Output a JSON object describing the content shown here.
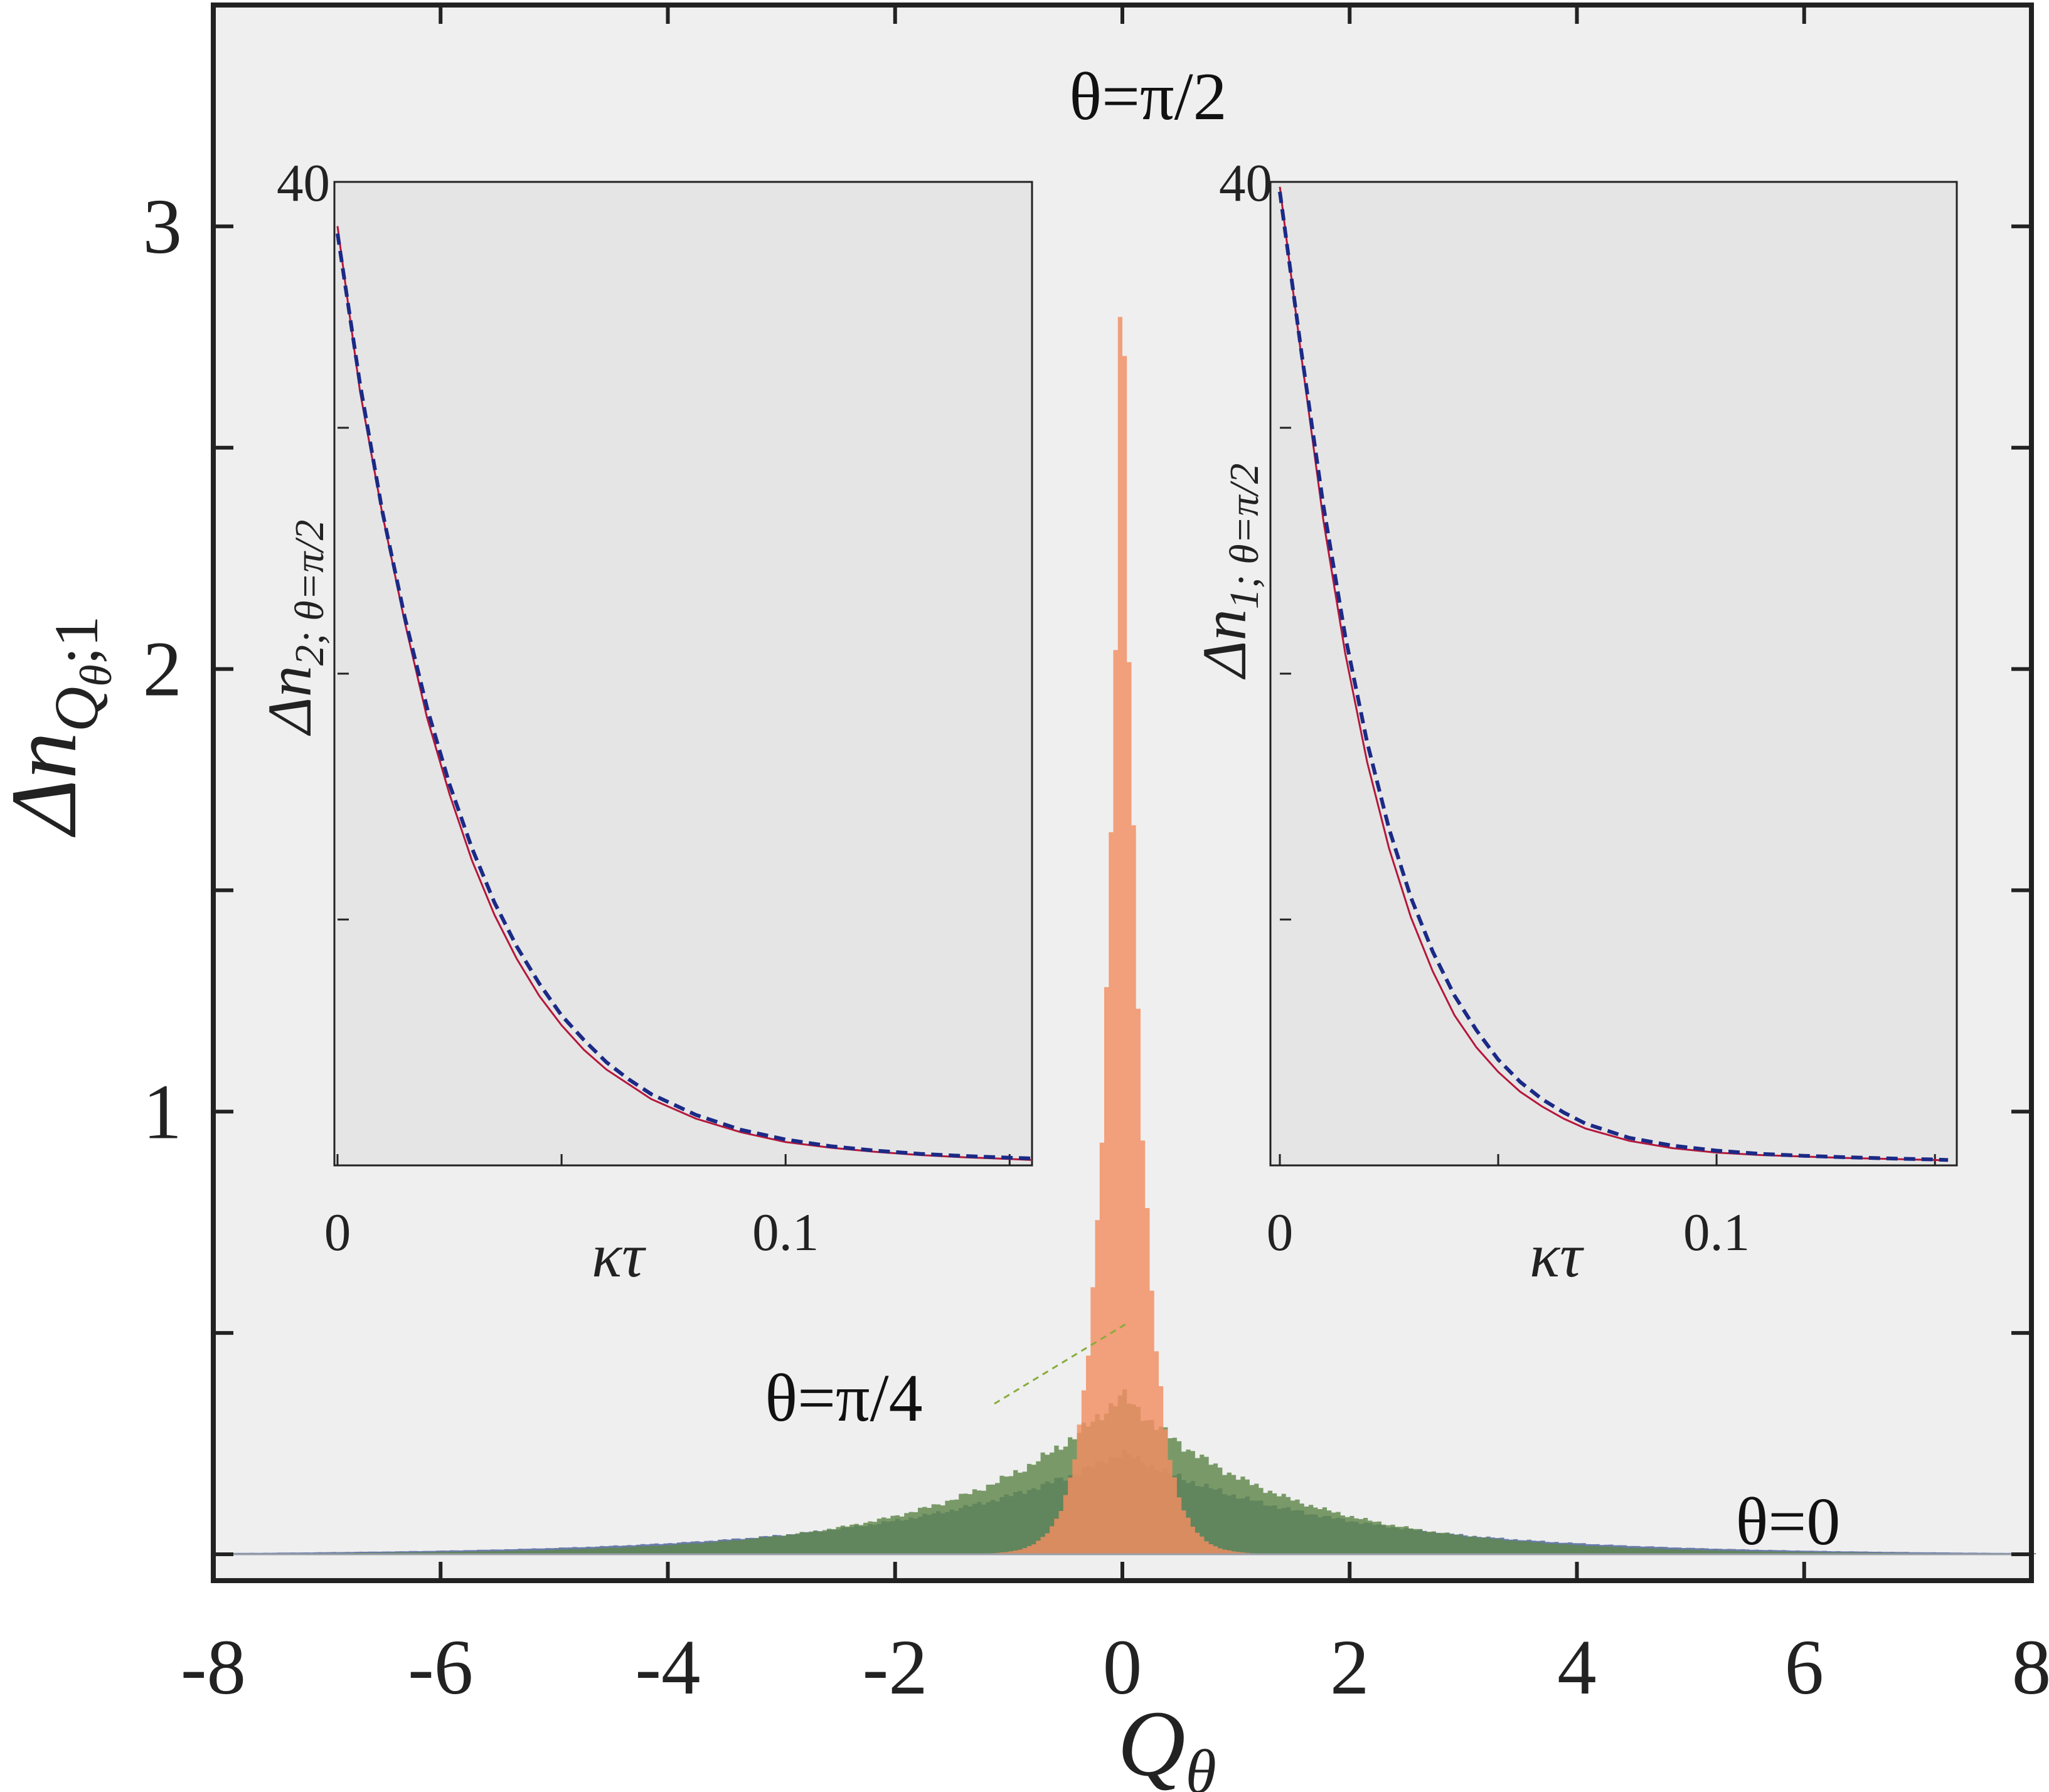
{
  "chart_data": [
    {
      "type": "area",
      "xlabel": "Q",
      "xlabel_sub": "θ",
      "ylabel_main": "Δn",
      "ylabel_sub1": "Q",
      "ylabel_sub2": "θ",
      "ylabel_sub3": ";1",
      "xlim": [
        -8,
        8
      ],
      "ylim": [
        0,
        3.5
      ],
      "xticks": [
        -8,
        -6,
        -4,
        -2,
        0,
        2,
        4,
        6,
        8
      ],
      "xtick_labels": [
        "-8",
        "-6",
        "-4",
        "-2",
        "0",
        "2",
        "4",
        "6",
        "8"
      ],
      "yticks": [
        0,
        0.5,
        1,
        1.5,
        2,
        2.5,
        3
      ],
      "ytick_labels": [
        "",
        "",
        "1",
        "",
        "2",
        "",
        "3"
      ],
      "annotations": [
        {
          "text": "θ=π/2",
          "x": 0.3,
          "y": 3.22
        },
        {
          "text": "θ=π/4",
          "x": -2.6,
          "y": 0.33
        },
        {
          "text": "θ=0",
          "x": 6.9,
          "y": 0.07
        }
      ],
      "series": [
        {
          "color": "#6a7cab",
          "peak": 0.23,
          "width": 1.8,
          "xrange": [
            -8,
            8
          ]
        },
        {
          "color": "#5f874a",
          "peak": 0.36,
          "width": 1.4,
          "xrange": [
            -8,
            8
          ]
        },
        {
          "color": "#f38e62",
          "peak": 3.02,
          "width": 0.16,
          "xrange": [
            -1.6,
            1.9
          ]
        }
      ],
      "leader_line_color": "#8aac3e"
    },
    {
      "type": "line",
      "inset": "left",
      "xlabel": "κτ",
      "ylabel_main": "Δn",
      "ylabel_sub": "2; θ=π/2",
      "xlim": [
        0,
        0.155
      ],
      "ylim": [
        0,
        40
      ],
      "xticks": [
        0,
        0.05,
        0.1,
        0.15
      ],
      "xtick_labels": [
        "0",
        "",
        "0.1",
        ""
      ],
      "yticks": [
        0,
        10,
        20,
        30,
        40
      ],
      "ytick_labels": [
        "",
        "",
        "",
        "",
        "40"
      ],
      "series": [
        {
          "style": "solid",
          "color": "#b5173a",
          "x": [
            0,
            0.005,
            0.01,
            0.015,
            0.02,
            0.025,
            0.03,
            0.035,
            0.04,
            0.045,
            0.05,
            0.055,
            0.06,
            0.065,
            0.07,
            0.08,
            0.09,
            0.1,
            0.11,
            0.12,
            0.13,
            0.14,
            0.15,
            0.155
          ],
          "y": [
            38.2,
            31.5,
            26.5,
            22.1,
            18.2,
            15.1,
            12.4,
            10.2,
            8.4,
            6.9,
            5.7,
            4.7,
            3.9,
            3.3,
            2.7,
            1.9,
            1.35,
            0.95,
            0.72,
            0.55,
            0.42,
            0.33,
            0.26,
            0.22
          ]
        },
        {
          "style": "dashed",
          "color": "#1b2a86",
          "x": [
            0,
            0.005,
            0.01,
            0.015,
            0.02,
            0.025,
            0.03,
            0.035,
            0.04,
            0.045,
            0.05,
            0.055,
            0.06,
            0.065,
            0.07,
            0.08,
            0.09,
            0.1,
            0.11,
            0.12,
            0.13,
            0.14,
            0.15,
            0.155
          ],
          "y": [
            37.9,
            31.8,
            26.6,
            22.3,
            18.6,
            15.5,
            12.9,
            10.7,
            8.9,
            7.4,
            6.1,
            5.1,
            4.2,
            3.5,
            2.9,
            2.05,
            1.45,
            1.05,
            0.78,
            0.6,
            0.47,
            0.38,
            0.31,
            0.28
          ]
        }
      ]
    },
    {
      "type": "line",
      "inset": "right",
      "xlabel": "κτ",
      "ylabel_main": "Δn",
      "ylabel_sub": "1; θ=π/2",
      "xlim": [
        0,
        0.155
      ],
      "ylim": [
        0,
        40
      ],
      "xticks": [
        0,
        0.05,
        0.1,
        0.15
      ],
      "xtick_labels": [
        "0",
        "",
        "0.1",
        ""
      ],
      "yticks": [
        0,
        10,
        20,
        30,
        40
      ],
      "ytick_labels": [
        "",
        "",
        "",
        "",
        "40"
      ],
      "series": [
        {
          "style": "solid",
          "color": "#b5173a",
          "x": [
            0,
            0.005,
            0.01,
            0.015,
            0.02,
            0.025,
            0.03,
            0.035,
            0.04,
            0.045,
            0.05,
            0.055,
            0.06,
            0.065,
            0.07,
            0.08,
            0.09,
            0.1,
            0.11,
            0.12,
            0.13,
            0.14,
            0.15,
            0.153
          ],
          "y": [
            39.8,
            32.8,
            26.2,
            20.8,
            16.4,
            12.9,
            10.1,
            7.9,
            6.1,
            4.8,
            3.8,
            3.0,
            2.4,
            1.9,
            1.5,
            1.0,
            0.7,
            0.52,
            0.42,
            0.36,
            0.3,
            0.26,
            0.22,
            0.2
          ]
        },
        {
          "style": "dashed",
          "color": "#1b2a86",
          "x": [
            0,
            0.005,
            0.01,
            0.015,
            0.02,
            0.025,
            0.03,
            0.035,
            0.04,
            0.045,
            0.05,
            0.055,
            0.06,
            0.065,
            0.07,
            0.08,
            0.09,
            0.1,
            0.11,
            0.12,
            0.13,
            0.14,
            0.15,
            0.153
          ],
          "y": [
            39.6,
            33.0,
            26.8,
            21.5,
            17.2,
            13.7,
            10.9,
            8.7,
            6.9,
            5.5,
            4.3,
            3.4,
            2.7,
            2.15,
            1.7,
            1.12,
            0.8,
            0.6,
            0.47,
            0.39,
            0.33,
            0.28,
            0.24,
            0.22
          ]
        }
      ]
    }
  ]
}
